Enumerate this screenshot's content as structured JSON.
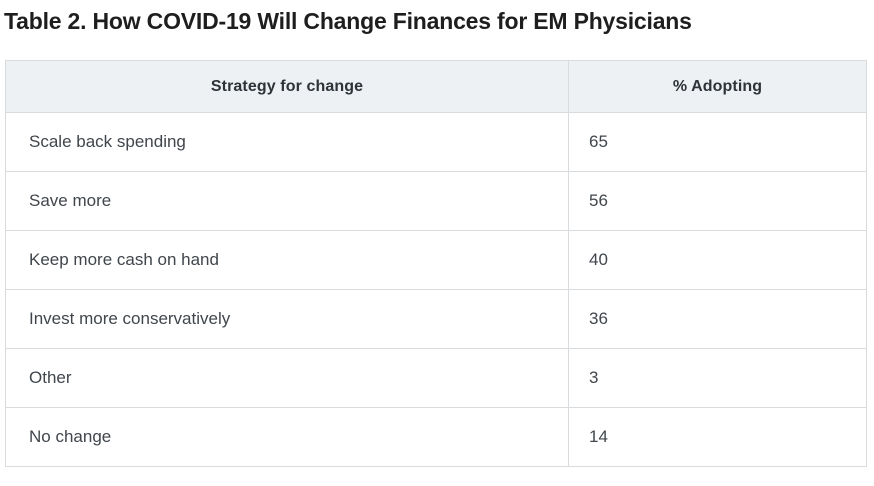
{
  "page": {
    "background": "#ffffff"
  },
  "chart_data": {
    "type": "table",
    "title": "Table 2. How COVID-19 Will Change Finances for EM Physicians",
    "columns": [
      "Strategy for change",
      "% Adopting"
    ],
    "rows": [
      {
        "strategy": "Scale back spending",
        "adopting": "65"
      },
      {
        "strategy": "Save more",
        "adopting": "56"
      },
      {
        "strategy": "Keep more cash on hand",
        "adopting": "40"
      },
      {
        "strategy": "Invest more conservatively",
        "adopting": "36"
      },
      {
        "strategy": "Other",
        "adopting": "3"
      },
      {
        "strategy": "No change",
        "adopting": "14"
      }
    ],
    "layout": {
      "header_align": "center",
      "body_align": "left",
      "grid": "full-borders"
    }
  },
  "colors": {
    "title_text": "#1e1e1e",
    "header_bg": "#eef1f3",
    "header_text": "#2d3339",
    "body_text": "#40464c",
    "border": "#d9dcdf"
  }
}
